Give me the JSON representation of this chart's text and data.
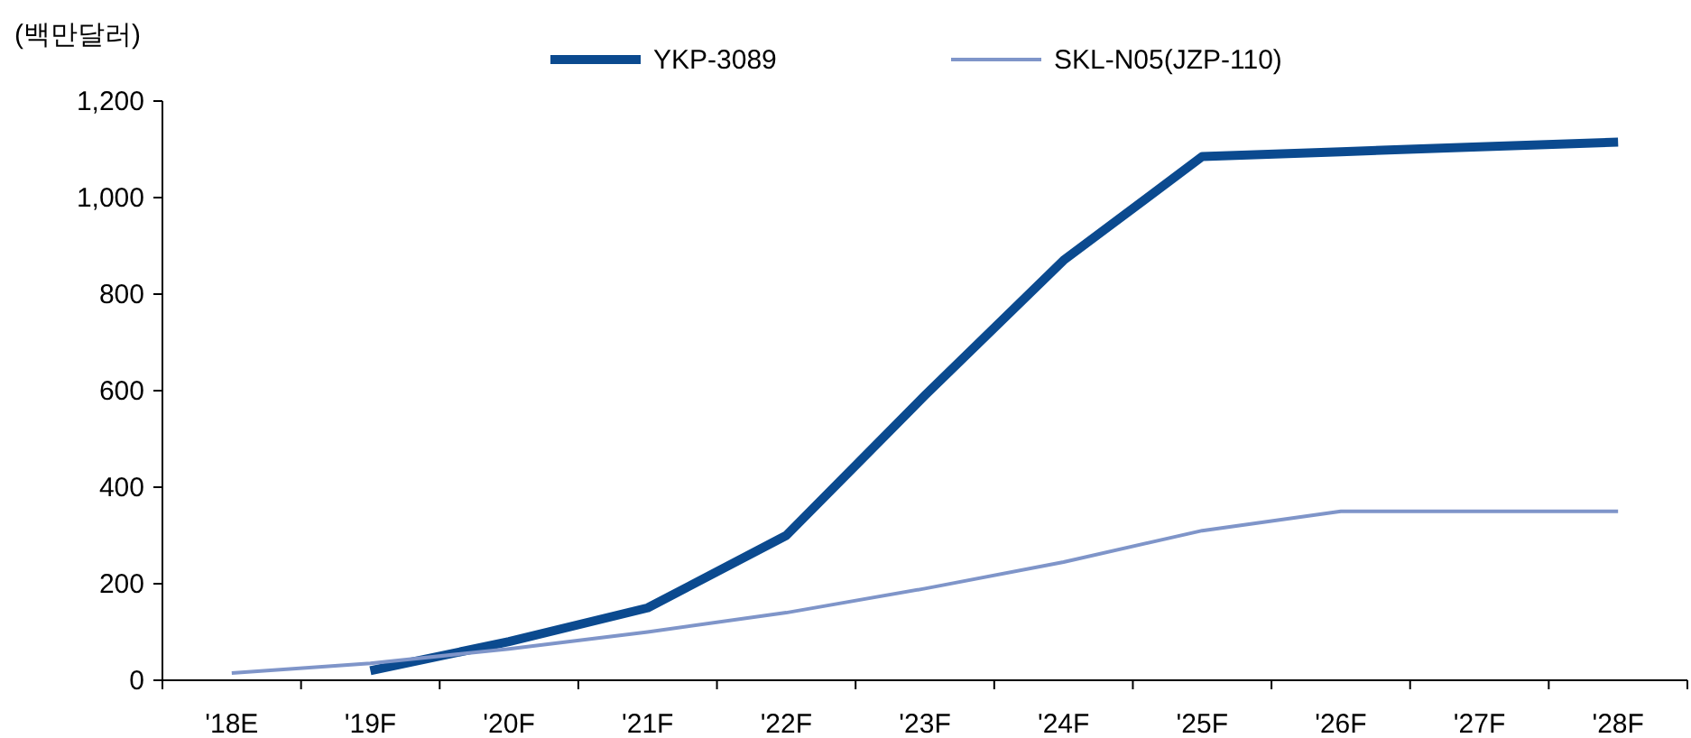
{
  "chart_data": {
    "type": "line",
    "ylabel": "(백만달러)",
    "categories": [
      "'18E",
      "'19F",
      "'20F",
      "'21F",
      "'22F",
      "'23F",
      "'24F",
      "'25F",
      "'26F",
      "'27F",
      "'28F"
    ],
    "series": [
      {
        "name": "YKP-3089",
        "color": "#0b4a8f",
        "values": [
          null,
          20,
          80,
          150,
          300,
          590,
          870,
          1085,
          1095,
          1105,
          1115
        ]
      },
      {
        "name": "SKL-N05(JZP-110)",
        "color": "#7f95c9",
        "values": [
          15,
          35,
          65,
          100,
          140,
          190,
          245,
          310,
          350,
          350,
          350
        ]
      }
    ],
    "ylim": [
      0,
      1200
    ],
    "yticks": [
      0,
      200,
      400,
      600,
      800,
      {
        "value": 1000,
        "label": "1,000"
      },
      {
        "value": 1200,
        "label": "1,200"
      }
    ],
    "grid": false,
    "legend": "top",
    "marker": "none",
    "line_style": "solid"
  }
}
